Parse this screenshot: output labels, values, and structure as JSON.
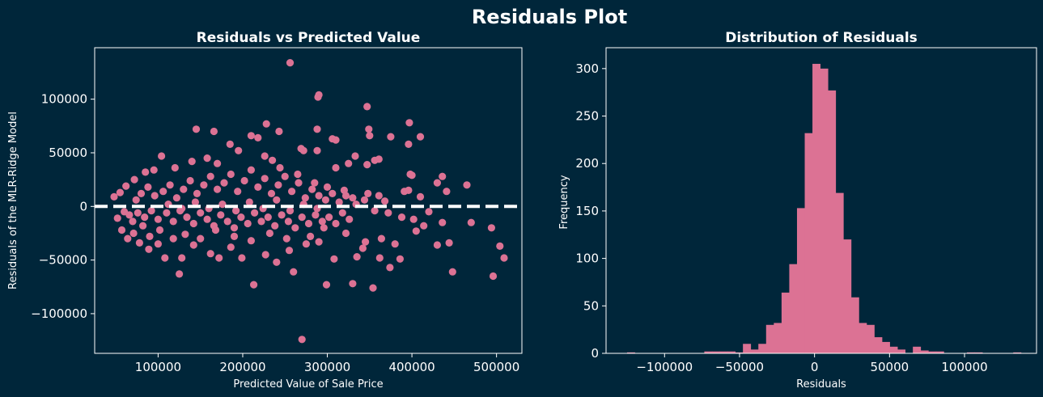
{
  "figure": {
    "title": "Residuals Plot",
    "background": "#00263a",
    "foreground": "#ffffff",
    "accent": "#dc7294"
  },
  "chart_data": [
    {
      "type": "scatter",
      "title": "Residuals vs Predicted Value",
      "xlabel": "Predicted Value of Sale Price",
      "ylabel": "Residuals of the MLR-Ridge Model",
      "xlim": [
        25000,
        530000
      ],
      "ylim": [
        -137000,
        148000
      ],
      "xticks": [
        100000,
        200000,
        300000,
        400000,
        500000
      ],
      "yticks": [
        -100000,
        -50000,
        0,
        50000,
        100000
      ],
      "xtick_labels": [
        "100000",
        "200000",
        "300000",
        "400000",
        "500000"
      ],
      "ytick_labels": [
        "−100000",
        "−50000",
        "0",
        "50000",
        "100000"
      ],
      "grid": false,
      "marker_color": "#dc7294",
      "reference_line": {
        "y": 0,
        "style": "dashed",
        "color": "#ffffff"
      },
      "points": [
        [
          256000,
          134000
        ],
        [
          290000,
          104000
        ],
        [
          289000,
          102000
        ],
        [
          347000,
          93000
        ],
        [
          397000,
          78000
        ],
        [
          145000,
          72000
        ],
        [
          349000,
          72000
        ],
        [
          166000,
          70000
        ],
        [
          243000,
          70000
        ],
        [
          228000,
          77000
        ],
        [
          288000,
          72000
        ],
        [
          210000,
          66000
        ],
        [
          218000,
          64000
        ],
        [
          306000,
          63000
        ],
        [
          310000,
          62000
        ],
        [
          350000,
          66000
        ],
        [
          375000,
          65000
        ],
        [
          410000,
          65000
        ],
        [
          396000,
          58000
        ],
        [
          269000,
          54000
        ],
        [
          272000,
          52000
        ],
        [
          288000,
          52000
        ],
        [
          333000,
          47000
        ],
        [
          356000,
          43000
        ],
        [
          361000,
          44000
        ],
        [
          347000,
          39000
        ],
        [
          325000,
          40000
        ],
        [
          310000,
          36000
        ],
        [
          398000,
          30000
        ],
        [
          400000,
          29000
        ],
        [
          436000,
          28000
        ],
        [
          430000,
          22000
        ],
        [
          465000,
          20000
        ],
        [
          441000,
          14000
        ],
        [
          391000,
          14000
        ],
        [
          396000,
          15000
        ],
        [
          410000,
          9000
        ],
        [
          361000,
          10000
        ],
        [
          368000,
          5000
        ],
        [
          348000,
          12000
        ],
        [
          330000,
          8000
        ],
        [
          320000,
          15000
        ],
        [
          300000,
          18000
        ],
        [
          285000,
          22000
        ],
        [
          265000,
          30000
        ],
        [
          244000,
          36000
        ],
        [
          235000,
          43000
        ],
        [
          226000,
          47000
        ],
        [
          195000,
          52000
        ],
        [
          185000,
          58000
        ],
        [
          170000,
          40000
        ],
        [
          158000,
          45000
        ],
        [
          140000,
          42000
        ],
        [
          120000,
          36000
        ],
        [
          104000,
          47000
        ],
        [
          95000,
          34000
        ],
        [
          85000,
          32000
        ],
        [
          72000,
          25000
        ],
        [
          62000,
          19000
        ],
        [
          55000,
          13000
        ],
        [
          48000,
          9000
        ],
        [
          60000,
          -5000
        ],
        [
          52000,
          -11000
        ],
        [
          57000,
          -22000
        ],
        [
          64000,
          -30000
        ],
        [
          71000,
          -25000
        ],
        [
          78000,
          -34000
        ],
        [
          89000,
          -40000
        ],
        [
          100000,
          -35000
        ],
        [
          108000,
          -48000
        ],
        [
          125000,
          -63000
        ],
        [
          128000,
          -48000
        ],
        [
          142000,
          -36000
        ],
        [
          162000,
          -44000
        ],
        [
          172000,
          -48000
        ],
        [
          186000,
          -38000
        ],
        [
          199000,
          -48000
        ],
        [
          213000,
          -73000
        ],
        [
          227000,
          -45000
        ],
        [
          240000,
          -52000
        ],
        [
          255000,
          -41000
        ],
        [
          260000,
          -61000
        ],
        [
          270000,
          -124000
        ],
        [
          275000,
          -35000
        ],
        [
          290000,
          -33000
        ],
        [
          299000,
          -73000
        ],
        [
          308000,
          -49000
        ],
        [
          330000,
          -72000
        ],
        [
          335000,
          -47000
        ],
        [
          342000,
          -39000
        ],
        [
          354000,
          -76000
        ],
        [
          362000,
          -48000
        ],
        [
          374000,
          -57000
        ],
        [
          386000,
          -49000
        ],
        [
          364000,
          -30000
        ],
        [
          380000,
          -35000
        ],
        [
          405000,
          -23000
        ],
        [
          430000,
          -36000
        ],
        [
          448000,
          -61000
        ],
        [
          470000,
          -15000
        ],
        [
          494000,
          -20000
        ],
        [
          496000,
          -65000
        ],
        [
          504000,
          -37000
        ],
        [
          509000,
          -48000
        ],
        [
          444000,
          -34000
        ],
        [
          436000,
          -15000
        ],
        [
          420000,
          -5000
        ],
        [
          414000,
          -18000
        ],
        [
          345000,
          -33000
        ],
        [
          322000,
          -25000
        ],
        [
          296000,
          -20000
        ],
        [
          280000,
          -28000
        ],
        [
          252000,
          -30000
        ],
        [
          232000,
          -25000
        ],
        [
          210000,
          -32000
        ],
        [
          190000,
          -28000
        ],
        [
          168000,
          -22000
        ],
        [
          150000,
          -30000
        ],
        [
          132000,
          -26000
        ],
        [
          118000,
          -30000
        ],
        [
          102000,
          -22000
        ],
        [
          90000,
          -28000
        ],
        [
          82000,
          -18000
        ],
        [
          70000,
          -14000
        ],
        [
          66000,
          -8000
        ],
        [
          74000,
          6000
        ],
        [
          80000,
          12000
        ],
        [
          88000,
          18000
        ],
        [
          96000,
          10000
        ],
        [
          106000,
          14000
        ],
        [
          114000,
          20000
        ],
        [
          122000,
          8000
        ],
        [
          130000,
          16000
        ],
        [
          138000,
          24000
        ],
        [
          146000,
          12000
        ],
        [
          154000,
          20000
        ],
        [
          162000,
          28000
        ],
        [
          170000,
          16000
        ],
        [
          178000,
          22000
        ],
        [
          186000,
          30000
        ],
        [
          194000,
          14000
        ],
        [
          202000,
          24000
        ],
        [
          210000,
          34000
        ],
        [
          218000,
          18000
        ],
        [
          226000,
          26000
        ],
        [
          234000,
          12000
        ],
        [
          242000,
          20000
        ],
        [
          250000,
          28000
        ],
        [
          258000,
          14000
        ],
        [
          266000,
          22000
        ],
        [
          274000,
          8000
        ],
        [
          282000,
          16000
        ],
        [
          290000,
          10000
        ],
        [
          298000,
          6000
        ],
        [
          306000,
          12000
        ],
        [
          314000,
          4000
        ],
        [
          322000,
          10000
        ],
        [
          334000,
          2000
        ],
        [
          344000,
          6000
        ],
        [
          356000,
          -4000
        ],
        [
          372000,
          -6000
        ],
        [
          388000,
          -10000
        ],
        [
          402000,
          -12000
        ],
        [
          76000,
          -6000
        ],
        [
          84000,
          -10000
        ],
        [
          92000,
          -4000
        ],
        [
          100000,
          -12000
        ],
        [
          110000,
          -6000
        ],
        [
          118000,
          -14000
        ],
        [
          126000,
          -4000
        ],
        [
          134000,
          -10000
        ],
        [
          142000,
          -16000
        ],
        [
          150000,
          -6000
        ],
        [
          158000,
          -12000
        ],
        [
          166000,
          -18000
        ],
        [
          174000,
          -8000
        ],
        [
          182000,
          -14000
        ],
        [
          190000,
          -20000
        ],
        [
          198000,
          -10000
        ],
        [
          206000,
          -16000
        ],
        [
          214000,
          -6000
        ],
        [
          222000,
          -14000
        ],
        [
          230000,
          -10000
        ],
        [
          238000,
          -18000
        ],
        [
          246000,
          -8000
        ],
        [
          254000,
          -14000
        ],
        [
          262000,
          -20000
        ],
        [
          270000,
          -10000
        ],
        [
          278000,
          -16000
        ],
        [
          286000,
          -8000
        ],
        [
          294000,
          -14000
        ],
        [
          302000,
          -10000
        ],
        [
          310000,
          -16000
        ],
        [
          318000,
          -6000
        ],
        [
          326000,
          -12000
        ],
        [
          112000,
          2000
        ],
        [
          128000,
          -2000
        ],
        [
          144000,
          4000
        ],
        [
          160000,
          -2000
        ],
        [
          176000,
          2000
        ],
        [
          192000,
          -4000
        ],
        [
          208000,
          4000
        ],
        [
          224000,
          -2000
        ],
        [
          240000,
          6000
        ],
        [
          256000,
          -4000
        ],
        [
          272000,
          2000
        ],
        [
          288000,
          -2000
        ]
      ]
    },
    {
      "type": "bar",
      "subtype": "histogram",
      "title": "Distribution of Residuals",
      "xlabel": "Residuals",
      "ylabel": "Frequency",
      "xlim": [
        -139000,
        148000
      ],
      "ylim": [
        0,
        322
      ],
      "xticks": [
        -100000,
        -50000,
        0,
        50000,
        100000
      ],
      "yticks": [
        0,
        50,
        100,
        150,
        200,
        250,
        300
      ],
      "xtick_labels": [
        "−100000",
        "−50000",
        "0",
        "50000",
        "100000"
      ],
      "ytick_labels": [
        "0",
        "50",
        "100",
        "150",
        "200",
        "250",
        "300"
      ],
      "grid": false,
      "bar_color": "#dc7294",
      "bin_start": -125000,
      "bin_width": 5150,
      "counts": [
        1,
        0,
        0,
        0,
        0,
        0,
        0,
        0,
        0,
        0,
        2,
        2,
        2,
        2,
        1,
        10,
        4,
        10,
        30,
        32,
        64,
        94,
        153,
        232,
        305,
        300,
        277,
        169,
        120,
        59,
        32,
        30,
        17,
        12,
        7,
        4,
        0,
        7,
        3,
        2,
        2,
        0,
        0,
        0,
        1,
        1,
        0,
        0,
        0,
        0,
        1
      ]
    }
  ]
}
